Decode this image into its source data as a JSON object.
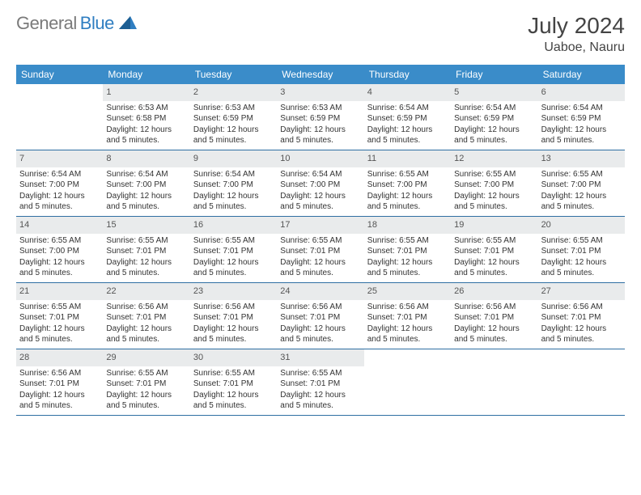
{
  "logo": {
    "gray": "General",
    "blue": "Blue"
  },
  "header": {
    "title": "July 2024",
    "location": "Uaboe, Nauru"
  },
  "colors": {
    "brand_blue": "#2f7ec1",
    "header_blue": "#3a8cc9",
    "rule_blue": "#2f6fa3",
    "daynum_bg": "#e9ebec",
    "logo_gray": "#7a7a7a"
  },
  "days_of_week": [
    "Sunday",
    "Monday",
    "Tuesday",
    "Wednesday",
    "Thursday",
    "Friday",
    "Saturday"
  ],
  "lead_blanks": 1,
  "days": [
    {
      "n": 1,
      "sr": "6:53 AM",
      "ss": "6:58 PM",
      "dl": "12 hours and 5 minutes."
    },
    {
      "n": 2,
      "sr": "6:53 AM",
      "ss": "6:59 PM",
      "dl": "12 hours and 5 minutes."
    },
    {
      "n": 3,
      "sr": "6:53 AM",
      "ss": "6:59 PM",
      "dl": "12 hours and 5 minutes."
    },
    {
      "n": 4,
      "sr": "6:54 AM",
      "ss": "6:59 PM",
      "dl": "12 hours and 5 minutes."
    },
    {
      "n": 5,
      "sr": "6:54 AM",
      "ss": "6:59 PM",
      "dl": "12 hours and 5 minutes."
    },
    {
      "n": 6,
      "sr": "6:54 AM",
      "ss": "6:59 PM",
      "dl": "12 hours and 5 minutes."
    },
    {
      "n": 7,
      "sr": "6:54 AM",
      "ss": "7:00 PM",
      "dl": "12 hours and 5 minutes."
    },
    {
      "n": 8,
      "sr": "6:54 AM",
      "ss": "7:00 PM",
      "dl": "12 hours and 5 minutes."
    },
    {
      "n": 9,
      "sr": "6:54 AM",
      "ss": "7:00 PM",
      "dl": "12 hours and 5 minutes."
    },
    {
      "n": 10,
      "sr": "6:54 AM",
      "ss": "7:00 PM",
      "dl": "12 hours and 5 minutes."
    },
    {
      "n": 11,
      "sr": "6:55 AM",
      "ss": "7:00 PM",
      "dl": "12 hours and 5 minutes."
    },
    {
      "n": 12,
      "sr": "6:55 AM",
      "ss": "7:00 PM",
      "dl": "12 hours and 5 minutes."
    },
    {
      "n": 13,
      "sr": "6:55 AM",
      "ss": "7:00 PM",
      "dl": "12 hours and 5 minutes."
    },
    {
      "n": 14,
      "sr": "6:55 AM",
      "ss": "7:00 PM",
      "dl": "12 hours and 5 minutes."
    },
    {
      "n": 15,
      "sr": "6:55 AM",
      "ss": "7:01 PM",
      "dl": "12 hours and 5 minutes."
    },
    {
      "n": 16,
      "sr": "6:55 AM",
      "ss": "7:01 PM",
      "dl": "12 hours and 5 minutes."
    },
    {
      "n": 17,
      "sr": "6:55 AM",
      "ss": "7:01 PM",
      "dl": "12 hours and 5 minutes."
    },
    {
      "n": 18,
      "sr": "6:55 AM",
      "ss": "7:01 PM",
      "dl": "12 hours and 5 minutes."
    },
    {
      "n": 19,
      "sr": "6:55 AM",
      "ss": "7:01 PM",
      "dl": "12 hours and 5 minutes."
    },
    {
      "n": 20,
      "sr": "6:55 AM",
      "ss": "7:01 PM",
      "dl": "12 hours and 5 minutes."
    },
    {
      "n": 21,
      "sr": "6:55 AM",
      "ss": "7:01 PM",
      "dl": "12 hours and 5 minutes."
    },
    {
      "n": 22,
      "sr": "6:56 AM",
      "ss": "7:01 PM",
      "dl": "12 hours and 5 minutes."
    },
    {
      "n": 23,
      "sr": "6:56 AM",
      "ss": "7:01 PM",
      "dl": "12 hours and 5 minutes."
    },
    {
      "n": 24,
      "sr": "6:56 AM",
      "ss": "7:01 PM",
      "dl": "12 hours and 5 minutes."
    },
    {
      "n": 25,
      "sr": "6:56 AM",
      "ss": "7:01 PM",
      "dl": "12 hours and 5 minutes."
    },
    {
      "n": 26,
      "sr": "6:56 AM",
      "ss": "7:01 PM",
      "dl": "12 hours and 5 minutes."
    },
    {
      "n": 27,
      "sr": "6:56 AM",
      "ss": "7:01 PM",
      "dl": "12 hours and 5 minutes."
    },
    {
      "n": 28,
      "sr": "6:56 AM",
      "ss": "7:01 PM",
      "dl": "12 hours and 5 minutes."
    },
    {
      "n": 29,
      "sr": "6:55 AM",
      "ss": "7:01 PM",
      "dl": "12 hours and 5 minutes."
    },
    {
      "n": 30,
      "sr": "6:55 AM",
      "ss": "7:01 PM",
      "dl": "12 hours and 5 minutes."
    },
    {
      "n": 31,
      "sr": "6:55 AM",
      "ss": "7:01 PM",
      "dl": "12 hours and 5 minutes."
    }
  ],
  "labels": {
    "sunrise": "Sunrise:",
    "sunset": "Sunset:",
    "daylight": "Daylight:"
  }
}
